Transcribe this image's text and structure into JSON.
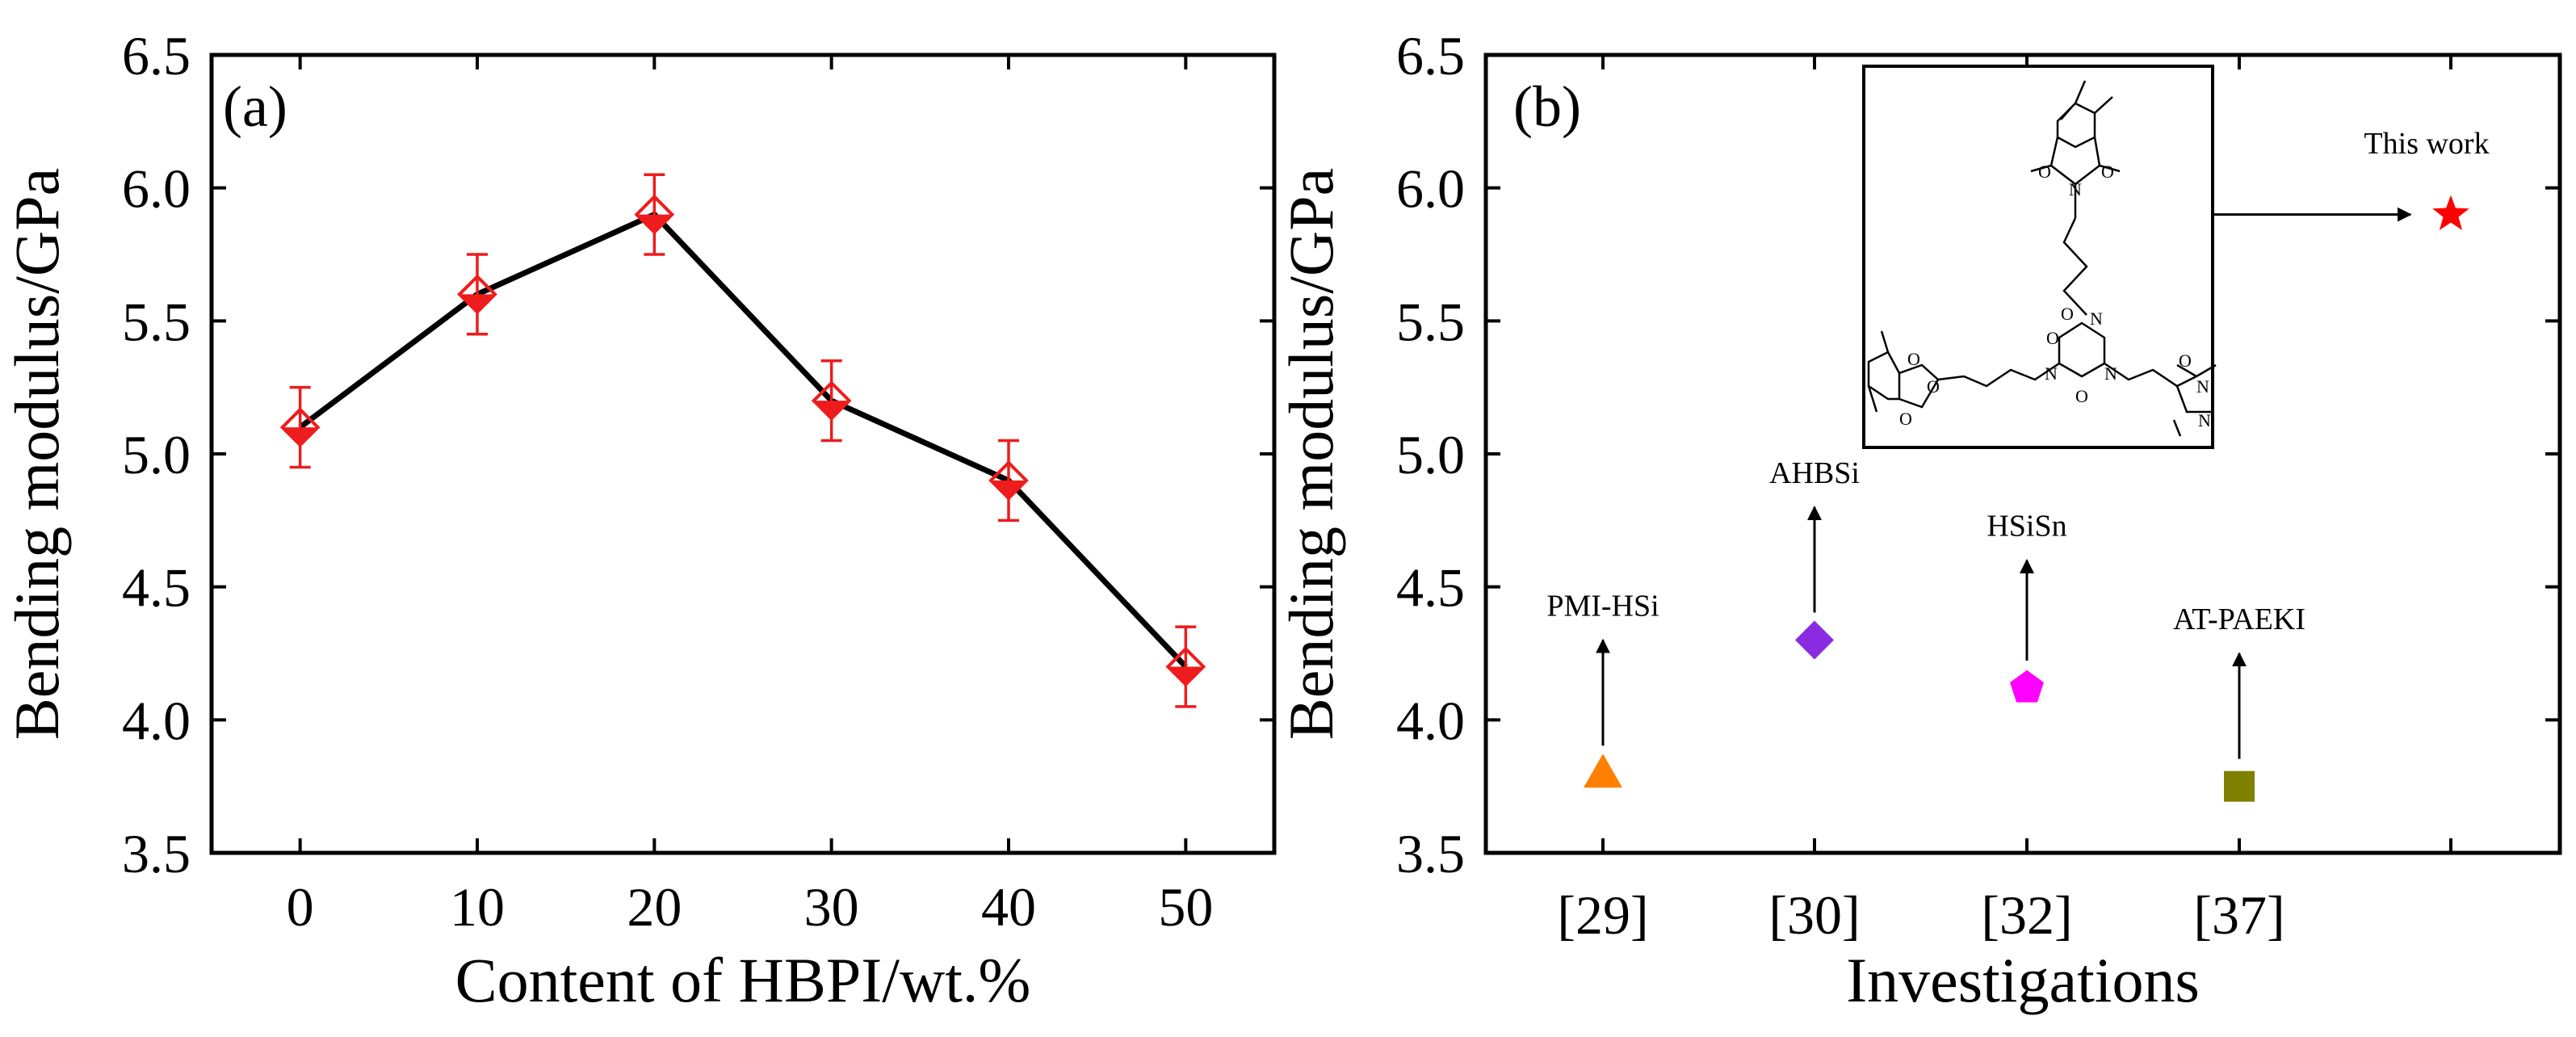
{
  "chart_data": [
    {
      "panel_label": "(a)",
      "type": "line",
      "xlabel": "Content of HBPI/wt.%",
      "ylabel": "Bending modulus/GPa",
      "x": [
        0,
        10,
        20,
        30,
        40,
        50
      ],
      "x_ticks": [
        0,
        10,
        20,
        30,
        40,
        50
      ],
      "x_tick_labels": [
        "0",
        "10",
        "20",
        "30",
        "40",
        "50"
      ],
      "xlim": [
        -5,
        55
      ],
      "ylim": [
        3.5,
        6.5
      ],
      "y_ticks": [
        3.5,
        4.0,
        4.5,
        5.0,
        5.5,
        6.0,
        6.5
      ],
      "y_tick_labels": [
        "3.5",
        "4.0",
        "4.5",
        "5.0",
        "5.5",
        "6.0",
        "6.5"
      ],
      "series": [
        {
          "name": "HBPI",
          "values": [
            5.1,
            5.6,
            5.9,
            5.2,
            4.9,
            4.2
          ],
          "errors": [
            0.15,
            0.15,
            0.15,
            0.15,
            0.15,
            0.15
          ],
          "marker": "half-filled-diamond",
          "marker_color": "#ee1c1c",
          "line_color": "#000000"
        }
      ],
      "grid": false
    },
    {
      "panel_label": "(b)",
      "type": "scatter",
      "xlabel": "Investigations",
      "ylabel": "Bending modulus/GPa",
      "categories": [
        "[29]",
        "[30]",
        "[32]",
        "[37]",
        ""
      ],
      "ylim": [
        3.5,
        6.5
      ],
      "y_ticks": [
        3.5,
        4.0,
        4.5,
        5.0,
        5.5,
        6.0,
        6.5
      ],
      "y_tick_labels": [
        "3.5",
        "4.0",
        "4.5",
        "5.0",
        "5.5",
        "6.0",
        "6.5"
      ],
      "points": [
        {
          "category_index": 0,
          "value": 3.8,
          "label": "PMI-HSi",
          "marker": "triangle",
          "color": "#ff8000",
          "arrow_to": 4.3
        },
        {
          "category_index": 1,
          "value": 4.3,
          "label": "AHBSi",
          "marker": "diamond",
          "color": "#8a2be2",
          "arrow_to": 4.8
        },
        {
          "category_index": 2,
          "value": 4.12,
          "label": "HSiSn",
          "marker": "pentagon",
          "color": "#ff00ff",
          "arrow_to": 4.6
        },
        {
          "category_index": 3,
          "value": 3.75,
          "label": "AT-PAEKI",
          "marker": "square",
          "color": "#808000",
          "arrow_to": 4.25
        },
        {
          "category_index": 4,
          "value": 5.9,
          "label": "This work",
          "marker": "star",
          "color": "#ff0000"
        }
      ],
      "structure_inset": {
        "atom_labels": [
          "O",
          "N",
          "O",
          "O",
          "N",
          "O",
          "N",
          "N",
          "O",
          "O",
          "O",
          "O",
          "N",
          "O",
          "N"
        ]
      },
      "grid": false
    }
  ]
}
